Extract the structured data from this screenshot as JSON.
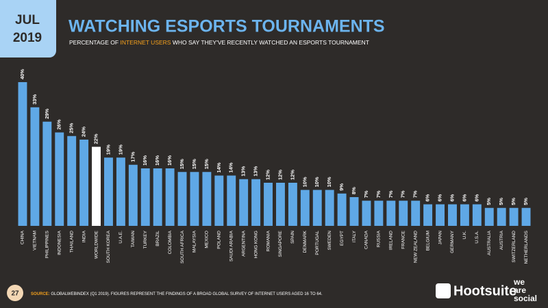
{
  "header": {
    "month": "JUL",
    "year": "2019",
    "subtitle_parts": [
      "PERCENTAGE OF ",
      "INTERNET USERS",
      " WHO SAY THEY'VE RECENTLY WATCHED AN ESPORTS TOURNAMENT"
    ]
  },
  "chart_data": {
    "type": "bar",
    "title": "WATCHING ESPORTS TOURNAMENTS",
    "categories": [
      "CHINA",
      "VIETNAM",
      "PHILIPPINES",
      "INDONESIA",
      "THAILAND",
      "INDIA",
      "WORLDWIDE",
      "SOUTH KOREA",
      "U.A.E.",
      "TAIWAN",
      "TURKEY",
      "BRAZIL",
      "COLOMBIA",
      "SOUTH AFRICA",
      "MALAYSIA",
      "MEXICO",
      "POLAND",
      "SAUDI ARABIA",
      "ARGENTINA",
      "HONG KONG",
      "ROMANIA",
      "SINGAPORE",
      "SPAIN",
      "DENMARK",
      "PORTUGAL",
      "SWEDEN",
      "EGYPT",
      "ITALY",
      "CANADA",
      "RUSSIA",
      "IRELAND",
      "FRANCE",
      "NEW ZEALAND",
      "BELGIUM",
      "JAPAN",
      "GERMANY",
      "U.K.",
      "U.S.A.",
      "AUSTRALIA",
      "AUSTRIA",
      "SWITZERLAND",
      "NETHERLANDS"
    ],
    "values": [
      40,
      33,
      29,
      26,
      25,
      24,
      22,
      19,
      19,
      17,
      16,
      16,
      16,
      15,
      15,
      15,
      14,
      14,
      13,
      13,
      12,
      12,
      12,
      10,
      10,
      10,
      9,
      8,
      7,
      7,
      7,
      7,
      7,
      6,
      6,
      6,
      6,
      6,
      5,
      5,
      5,
      5
    ],
    "value_labels": [
      "40%",
      "33%",
      "29%",
      "26%",
      "25%",
      "24%",
      "22%",
      "19%",
      "19%",
      "17%",
      "16%",
      "16%",
      "16%",
      "15%",
      "15%",
      "15%",
      "14%",
      "14%",
      "13%",
      "13%",
      "12%",
      "12%",
      "12%",
      "10%",
      "10%",
      "10%",
      "9%",
      "8%",
      "7%",
      "7%",
      "7%",
      "7%",
      "7%",
      "6%",
      "6%",
      "6%",
      "6%",
      "6%",
      "5%",
      "5%",
      "5%",
      "5%"
    ],
    "colors": [
      "#5fa8e6",
      "#5fa8e6",
      "#5fa8e6",
      "#5fa8e6",
      "#5fa8e6",
      "#5fa8e6",
      "#ffffff",
      "#5fa8e6",
      "#5fa8e6",
      "#5fa8e6",
      "#5fa8e6",
      "#5fa8e6",
      "#5fa8e6",
      "#5fa8e6",
      "#5fa8e6",
      "#5fa8e6",
      "#5fa8e6",
      "#5fa8e6",
      "#5fa8e6",
      "#5fa8e6",
      "#5fa8e6",
      "#5fa8e6",
      "#5fa8e6",
      "#5fa8e6",
      "#5fa8e6",
      "#5fa8e6",
      "#5fa8e6",
      "#5fa8e6",
      "#5fa8e6",
      "#5fa8e6",
      "#5fa8e6",
      "#5fa8e6",
      "#5fa8e6",
      "#5fa8e6",
      "#5fa8e6",
      "#5fa8e6",
      "#5fa8e6",
      "#5fa8e6",
      "#5fa8e6",
      "#5fa8e6",
      "#5fa8e6",
      "#5fa8e6"
    ]
  },
  "footer": {
    "page": "27",
    "source_label": "SOURCE:",
    "source_text": " GLOBALWEBINDEX (Q1 2019). FIGURES REPRESENT THE FINDINGS OF A BROAD GLOBAL SURVEY OF INTERNET USERS AGED 16 TO 64.",
    "brand": "Hootsuite",
    "partner": [
      "we",
      "are",
      "social"
    ]
  }
}
